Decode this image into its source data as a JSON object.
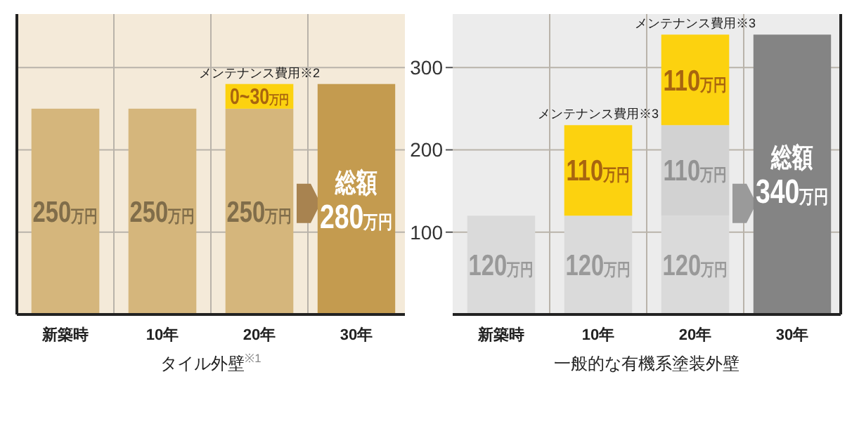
{
  "chart_data": [
    {
      "type": "bar",
      "stacked": true,
      "categories": [
        "新築時",
        "10年",
        "20年",
        "30年"
      ],
      "xlabel": "タイル外壁$^{※1}$",
      "ylim": [
        0,
        365
      ],
      "yticks": [
        100,
        200,
        300
      ],
      "tick_labels": "x",
      "grid": true,
      "series": [
        {
          "color": "#d5b67c",
          "values": [
            250,
            250,
            250,
            null
          ],
          "value_labels": [
            "250万円",
            "250万円",
            "250万円",
            null
          ]
        },
        {
          "color": "#fcd20f",
          "values": [
            null,
            null,
            30,
            null
          ],
          "value_labels": [
            null,
            null,
            "0~30万円",
            null
          ]
        },
        {
          "color": "#c49b4f",
          "values": [
            null,
            null,
            null,
            280
          ],
          "value_labels": [
            null,
            null,
            null,
            "総額 280万円"
          ]
        }
      ],
      "annotations": [
        {
          "text": "メンテナンス費用※2",
          "x": "20年",
          "y": 280
        }
      ]
    },
    {
      "type": "bar",
      "stacked": true,
      "categories": [
        "新築時",
        "10年",
        "20年",
        "30年"
      ],
      "xlabel": "一般的な有機系塗装外壁",
      "ylim": [
        0,
        365
      ],
      "yticks": [
        100,
        200,
        300
      ],
      "grid": true,
      "series": [
        {
          "color": "#dadada",
          "values": [
            120,
            120,
            120,
            null
          ],
          "value_labels": [
            "120万円",
            "120万円",
            "120万円",
            null
          ]
        },
        {
          "color": "#d2d2d2",
          "values": [
            null,
            null,
            110,
            null
          ],
          "value_labels": [
            null,
            null,
            "110万円",
            null
          ]
        },
        {
          "color": "#fcd20f",
          "values": [
            null,
            110,
            110,
            null
          ],
          "value_labels": [
            null,
            "110万円",
            "110万円",
            null
          ]
        },
        {
          "color": "#848484",
          "values": [
            null,
            null,
            null,
            340
          ],
          "value_labels": [
            null,
            null,
            null,
            "総額 340万円"
          ]
        }
      ],
      "annotations": [
        {
          "text": "メンテナンス費用※3",
          "x": "10年",
          "y": 230
        },
        {
          "text": "メンテナンス費用※3",
          "x": "20年",
          "y": 340
        }
      ]
    }
  ]
}
